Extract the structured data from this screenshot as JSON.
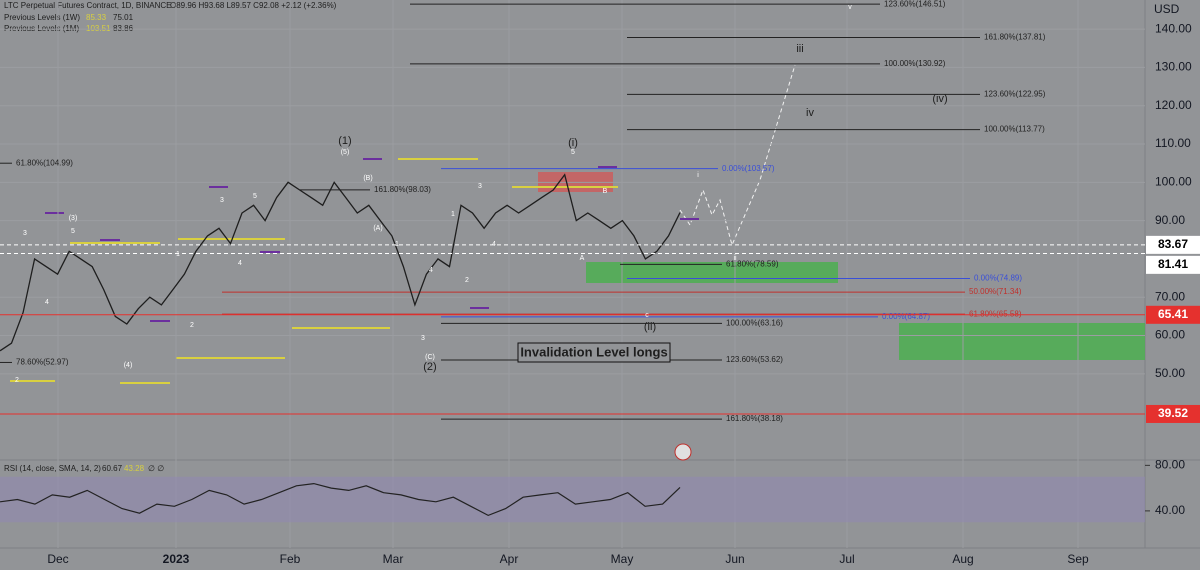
{
  "header": {
    "symbol": "LTC Perpetual Futures Contract, 1D, BINANCE",
    "ohlc": "O89.96 H93.68 L89.57 C92.08 +2.12 (+2.36%)",
    "levels_1w": {
      "label": "Previous Levels (1W)",
      "a": "85.33",
      "b": "75.01"
    },
    "levels_1m": {
      "label": "Previous Levels (1M)",
      "a": "103.51",
      "b": "83.86"
    }
  },
  "chart_data": {
    "type": "line",
    "unit": "USD",
    "values": [
      56,
      58,
      66,
      80,
      78,
      76,
      82,
      80,
      78,
      72,
      65,
      63,
      67,
      70,
      68,
      72,
      76,
      82,
      86,
      88,
      84,
      92,
      94,
      90,
      96,
      100,
      98,
      96,
      94,
      100,
      96,
      92,
      94,
      90,
      86,
      78,
      68,
      76,
      80,
      78,
      94,
      92,
      88,
      92,
      94,
      92,
      94,
      96,
      98,
      102,
      90,
      92,
      90,
      88,
      90,
      86,
      80,
      82,
      86,
      92.08
    ],
    "ylim": [
      27.5,
      147.6
    ],
    "yticks": [
      {
        "value": 140,
        "label": "140.00"
      },
      {
        "value": 130,
        "label": "130.00"
      },
      {
        "value": 120,
        "label": "120.00"
      },
      {
        "value": 110,
        "label": "110.00"
      },
      {
        "value": 100,
        "label": "100.00"
      },
      {
        "value": 90,
        "label": "90.00"
      },
      {
        "value": 70,
        "label": "70.00"
      },
      {
        "value": 60,
        "label": "60.00"
      },
      {
        "value": 50,
        "label": "50.00"
      }
    ],
    "badges": [
      {
        "value": 83.67,
        "label": "83.67",
        "color": "#ffffff"
      },
      {
        "value": 81.41,
        "label": "81.41",
        "color": "#ffffff"
      },
      {
        "value": 65.41,
        "label": "65.41",
        "color": "#e5312e"
      },
      {
        "value": 39.52,
        "label": "39.52",
        "color": "#e5312e"
      }
    ],
    "time_labels": [
      "Dec",
      "2023",
      "Feb",
      "Mar",
      "Apr",
      "May",
      "Jun",
      "Jul",
      "Aug",
      "Sep"
    ],
    "levels": [
      {
        "label": "123.60%(146.51)",
        "value": 146.51,
        "color": "#222222"
      },
      {
        "label": "161.80%(137.81)",
        "value": 137.81,
        "color": "#222222"
      },
      {
        "label": "100.00%(130.92)",
        "value": 130.92,
        "color": "#222222"
      },
      {
        "label": "123.60%(122.95)",
        "value": 122.95,
        "color": "#222222"
      },
      {
        "label": "100.00%(113.77)",
        "value": 113.77,
        "color": "#222222"
      },
      {
        "label": "0.00%(103.57)",
        "value": 103.57,
        "color": "#3a4fd8"
      },
      {
        "label": "61.80%(78.59)",
        "value": 78.59,
        "color": "#222222"
      },
      {
        "label": "0.00%(74.89)",
        "value": 74.89,
        "color": "#3a4fd8"
      },
      {
        "label": "50.00%(71.34)",
        "value": 71.34,
        "color": "#c0302c"
      },
      {
        "label": "61.80%(65.58)",
        "value": 65.58,
        "color": "#c0302c"
      },
      {
        "label": "0.00%(64.87)",
        "value": 64.87,
        "color": "#3a4fd8"
      },
      {
        "label": "100.00%(63.16)",
        "value": 63.16,
        "color": "#222222"
      },
      {
        "label": "123.60%(53.62)",
        "value": 53.62,
        "color": "#222222"
      },
      {
        "label": "161.80%(38.18)",
        "value": 38.18,
        "color": "#222222"
      },
      {
        "label": "61.80%(104.99)",
        "value": 104.99,
        "color": "#222222"
      },
      {
        "label": "78.60%(52.97)",
        "value": 52.97,
        "color": "#222222"
      },
      {
        "label": "161.80%(98.03)",
        "value": 98.03,
        "color": "#222222"
      }
    ],
    "waves": [
      "(1)",
      "(5)",
      "(2)",
      "(C)",
      "(i)",
      "5",
      "(ii)",
      "c",
      "iii",
      "iv",
      "(iv)",
      "v",
      "i",
      "ii",
      "B",
      "A",
      "(3)",
      "3",
      "5",
      "4",
      "(4)",
      "2",
      "1",
      "2",
      "3",
      "4",
      "5",
      "(A)",
      "(B)",
      "1",
      "3",
      "4",
      "2",
      "3",
      "1",
      "4"
    ],
    "annotation": "Invalidation Level longs"
  },
  "rsi": {
    "title": "RSI (14, close, SMA, 14, 2)",
    "last": "60.67",
    "sma": "43.28",
    "extra": "∅ ∅",
    "values": [
      48,
      50,
      46,
      54,
      52,
      58,
      50,
      42,
      38,
      46,
      44,
      50,
      58,
      54,
      46,
      50,
      56,
      62,
      64,
      60,
      58,
      62,
      56,
      54,
      50,
      48,
      52,
      44,
      36,
      42,
      52,
      54,
      56,
      46,
      48,
      50,
      56,
      44,
      46,
      60.67
    ],
    "ylim": [
      7.4,
      84.7
    ],
    "yticks": [
      {
        "value": 80,
        "label": "80.00"
      },
      {
        "value": 40,
        "label": "40.00"
      }
    ],
    "band": [
      30,
      70
    ],
    "color": "#222222"
  }
}
